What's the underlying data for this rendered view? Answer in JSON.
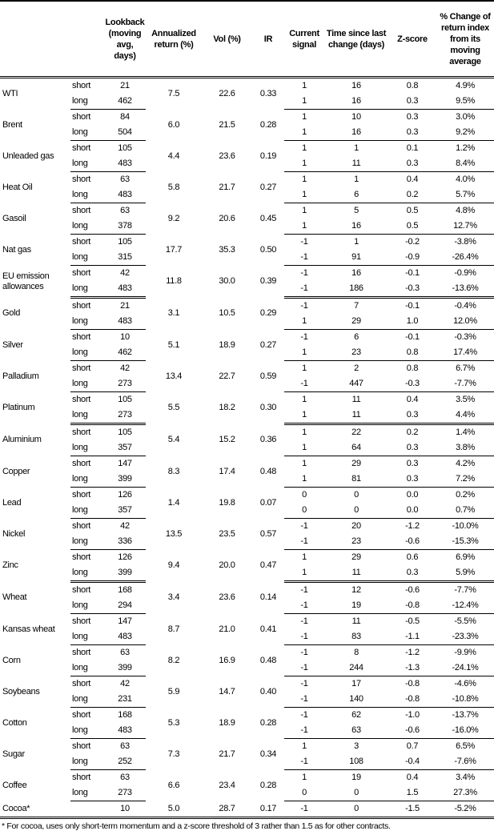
{
  "headers": [
    "",
    "",
    "Lookback (moving avg, days)",
    "Annualized return (%)",
    "Vol (%)",
    "IR",
    "Current signal",
    "Time since last change (days)",
    "Z-score",
    "% Change of return index from its moving average"
  ],
  "sectors": [
    {
      "commodities": [
        {
          "name": "WTI",
          "ann": "7.5",
          "vol": "22.6",
          "ir": "0.33",
          "rows": [
            {
              "label": "short",
              "lookback": "21",
              "signal": "1",
              "time": "16",
              "z": "0.8",
              "pct": "4.9%"
            },
            {
              "label": "long",
              "lookback": "462",
              "signal": "1",
              "time": "16",
              "z": "0.3",
              "pct": "9.5%"
            }
          ]
        },
        {
          "name": "Brent",
          "ann": "6.0",
          "vol": "21.5",
          "ir": "0.28",
          "rows": [
            {
              "label": "short",
              "lookback": "84",
              "signal": "1",
              "time": "10",
              "z": "0.3",
              "pct": "3.0%"
            },
            {
              "label": "long",
              "lookback": "504",
              "signal": "1",
              "time": "16",
              "z": "0.3",
              "pct": "9.2%"
            }
          ]
        },
        {
          "name": "Unleaded gas",
          "ann": "4.4",
          "vol": "23.6",
          "ir": "0.19",
          "rows": [
            {
              "label": "short",
              "lookback": "105",
              "signal": "1",
              "time": "1",
              "z": "0.1",
              "pct": "1.2%"
            },
            {
              "label": "long",
              "lookback": "483",
              "signal": "1",
              "time": "11",
              "z": "0.3",
              "pct": "8.4%"
            }
          ]
        },
        {
          "name": "Heat Oil",
          "ann": "5.8",
          "vol": "21.7",
          "ir": "0.27",
          "rows": [
            {
              "label": "short",
              "lookback": "63",
              "signal": "1",
              "time": "1",
              "z": "0.4",
              "pct": "4.0%"
            },
            {
              "label": "long",
              "lookback": "483",
              "signal": "1",
              "time": "6",
              "z": "0.2",
              "pct": "5.7%"
            }
          ]
        },
        {
          "name": "Gasoil",
          "ann": "9.2",
          "vol": "20.6",
          "ir": "0.45",
          "rows": [
            {
              "label": "short",
              "lookback": "63",
              "signal": "1",
              "time": "5",
              "z": "0.5",
              "pct": "4.8%"
            },
            {
              "label": "long",
              "lookback": "378",
              "signal": "1",
              "time": "16",
              "z": "0.5",
              "pct": "12.7%"
            }
          ]
        },
        {
          "name": "Nat gas",
          "ann": "17.7",
          "vol": "35.3",
          "ir": "0.50",
          "rows": [
            {
              "label": "short",
              "lookback": "105",
              "signal": "-1",
              "time": "1",
              "z": "-0.2",
              "pct": "-3.8%"
            },
            {
              "label": "long",
              "lookback": "315",
              "signal": "-1",
              "time": "91",
              "z": "-0.9",
              "pct": "-26.4%"
            }
          ]
        },
        {
          "name": "EU emission allowances",
          "ann": "11.8",
          "vol": "30.0",
          "ir": "0.39",
          "rows": [
            {
              "label": "short",
              "lookback": "42",
              "signal": "-1",
              "time": "16",
              "z": "-0.1",
              "pct": "-0.9%"
            },
            {
              "label": "long",
              "lookback": "483",
              "signal": "-1",
              "time": "186",
              "z": "-0.3",
              "pct": "-13.6%"
            }
          ]
        }
      ]
    },
    {
      "commodities": [
        {
          "name": "Gold",
          "ann": "3.1",
          "vol": "10.5",
          "ir": "0.29",
          "rows": [
            {
              "label": "short",
              "lookback": "21",
              "signal": "-1",
              "time": "7",
              "z": "-0.1",
              "pct": "-0.4%"
            },
            {
              "label": "long",
              "lookback": "483",
              "signal": "1",
              "time": "29",
              "z": "1.0",
              "pct": "12.0%"
            }
          ]
        },
        {
          "name": "Silver",
          "ann": "5.1",
          "vol": "18.9",
          "ir": "0.27",
          "rows": [
            {
              "label": "short",
              "lookback": "10",
              "signal": "-1",
              "time": "6",
              "z": "-0.1",
              "pct": "-0.3%"
            },
            {
              "label": "long",
              "lookback": "462",
              "signal": "1",
              "time": "23",
              "z": "0.8",
              "pct": "17.4%"
            }
          ]
        },
        {
          "name": "Palladium",
          "ann": "13.4",
          "vol": "22.7",
          "ir": "0.59",
          "rows": [
            {
              "label": "short",
              "lookback": "42",
              "signal": "1",
              "time": "2",
              "z": "0.8",
              "pct": "6.7%"
            },
            {
              "label": "long",
              "lookback": "273",
              "signal": "-1",
              "time": "447",
              "z": "-0.3",
              "pct": "-7.7%"
            }
          ]
        },
        {
          "name": "Platinum",
          "ann": "5.5",
          "vol": "18.2",
          "ir": "0.30",
          "rows": [
            {
              "label": "short",
              "lookback": "105",
              "signal": "1",
              "time": "11",
              "z": "0.4",
              "pct": "3.5%"
            },
            {
              "label": "long",
              "lookback": "273",
              "signal": "1",
              "time": "11",
              "z": "0.3",
              "pct": "4.4%"
            }
          ]
        }
      ]
    },
    {
      "commodities": [
        {
          "name": "Aluminium",
          "ann": "5.4",
          "vol": "15.2",
          "ir": "0.36",
          "rows": [
            {
              "label": "short",
              "lookback": "105",
              "signal": "1",
              "time": "22",
              "z": "0.2",
              "pct": "1.4%"
            },
            {
              "label": "long",
              "lookback": "357",
              "signal": "1",
              "time": "64",
              "z": "0.3",
              "pct": "3.8%"
            }
          ]
        },
        {
          "name": "Copper",
          "ann": "8.3",
          "vol": "17.4",
          "ir": "0.48",
          "rows": [
            {
              "label": "short",
              "lookback": "147",
              "signal": "1",
              "time": "29",
              "z": "0.3",
              "pct": "4.2%"
            },
            {
              "label": "long",
              "lookback": "399",
              "signal": "1",
              "time": "81",
              "z": "0.3",
              "pct": "7.2%"
            }
          ]
        },
        {
          "name": "Lead",
          "ann": "1.4",
          "vol": "19.8",
          "ir": "0.07",
          "rows": [
            {
              "label": "short",
              "lookback": "126",
              "signal": "0",
              "time": "0",
              "z": "0.0",
              "pct": "0.2%"
            },
            {
              "label": "long",
              "lookback": "357",
              "signal": "0",
              "time": "0",
              "z": "0.0",
              "pct": "0.7%"
            }
          ]
        },
        {
          "name": "Nickel",
          "ann": "13.5",
          "vol": "23.5",
          "ir": "0.57",
          "rows": [
            {
              "label": "short",
              "lookback": "42",
              "signal": "-1",
              "time": "20",
              "z": "-1.2",
              "pct": "-10.0%"
            },
            {
              "label": "long",
              "lookback": "336",
              "signal": "-1",
              "time": "23",
              "z": "-0.6",
              "pct": "-15.3%"
            }
          ]
        },
        {
          "name": "Zinc",
          "ann": "9.4",
          "vol": "20.0",
          "ir": "0.47",
          "rows": [
            {
              "label": "short",
              "lookback": "126",
              "signal": "1",
              "time": "29",
              "z": "0.6",
              "pct": "6.9%"
            },
            {
              "label": "long",
              "lookback": "399",
              "signal": "1",
              "time": "11",
              "z": "0.3",
              "pct": "5.9%"
            }
          ]
        }
      ]
    },
    {
      "commodities": [
        {
          "name": "Wheat",
          "ann": "3.4",
          "vol": "23.6",
          "ir": "0.14",
          "rows": [
            {
              "label": "short",
              "lookback": "168",
              "signal": "-1",
              "time": "12",
              "z": "-0.6",
              "pct": "-7.7%"
            },
            {
              "label": "long",
              "lookback": "294",
              "signal": "-1",
              "time": "19",
              "z": "-0.8",
              "pct": "-12.4%"
            }
          ]
        },
        {
          "name": "Kansas wheat",
          "ann": "8.7",
          "vol": "21.0",
          "ir": "0.41",
          "rows": [
            {
              "label": "short",
              "lookback": "147",
              "signal": "-1",
              "time": "11",
              "z": "-0.5",
              "pct": "-5.5%"
            },
            {
              "label": "long",
              "lookback": "483",
              "signal": "-1",
              "time": "83",
              "z": "-1.1",
              "pct": "-23.3%"
            }
          ]
        },
        {
          "name": "Corn",
          "ann": "8.2",
          "vol": "16.9",
          "ir": "0.48",
          "rows": [
            {
              "label": "short",
              "lookback": "63",
              "signal": "-1",
              "time": "8",
              "z": "-1.2",
              "pct": "-9.9%"
            },
            {
              "label": "long",
              "lookback": "399",
              "signal": "-1",
              "time": "244",
              "z": "-1.3",
              "pct": "-24.1%"
            }
          ]
        },
        {
          "name": "Soybeans",
          "ann": "5.9",
          "vol": "14.7",
          "ir": "0.40",
          "rows": [
            {
              "label": "short",
              "lookback": "42",
              "signal": "-1",
              "time": "17",
              "z": "-0.8",
              "pct": "-4.6%"
            },
            {
              "label": "long",
              "lookback": "231",
              "signal": "-1",
              "time": "140",
              "z": "-0.8",
              "pct": "-10.8%"
            }
          ]
        },
        {
          "name": "Cotton",
          "ann": "5.3",
          "vol": "18.9",
          "ir": "0.28",
          "rows": [
            {
              "label": "short",
              "lookback": "168",
              "signal": "-1",
              "time": "62",
              "z": "-1.0",
              "pct": "-13.7%"
            },
            {
              "label": "long",
              "lookback": "483",
              "signal": "-1",
              "time": "63",
              "z": "-0.6",
              "pct": "-16.0%"
            }
          ]
        },
        {
          "name": "Sugar",
          "ann": "7.3",
          "vol": "21.7",
          "ir": "0.34",
          "rows": [
            {
              "label": "short",
              "lookback": "63",
              "signal": "1",
              "time": "3",
              "z": "0.7",
              "pct": "6.5%"
            },
            {
              "label": "long",
              "lookback": "252",
              "signal": "-1",
              "time": "108",
              "z": "-0.4",
              "pct": "-7.6%"
            }
          ]
        },
        {
          "name": "Coffee",
          "ann": "6.6",
          "vol": "23.4",
          "ir": "0.28",
          "rows": [
            {
              "label": "short",
              "lookback": "63",
              "signal": "1",
              "time": "19",
              "z": "0.4",
              "pct": "3.4%"
            },
            {
              "label": "long",
              "lookback": "273",
              "signal": "0",
              "time": "0",
              "z": "1.5",
              "pct": "27.3%"
            }
          ]
        },
        {
          "name": "Cocoa*",
          "ann": "5.0",
          "vol": "28.7",
          "ir": "0.17",
          "rows": [
            {
              "label": "",
              "lookback": "10",
              "signal": "-1",
              "time": "0",
              "z": "-1.5",
              "pct": "-5.2%"
            }
          ]
        }
      ]
    }
  ],
  "footnote": "* For cocoa, uses only short-term momentum and a z-score threshold of 3 rather than 1.5 as for other contracts."
}
